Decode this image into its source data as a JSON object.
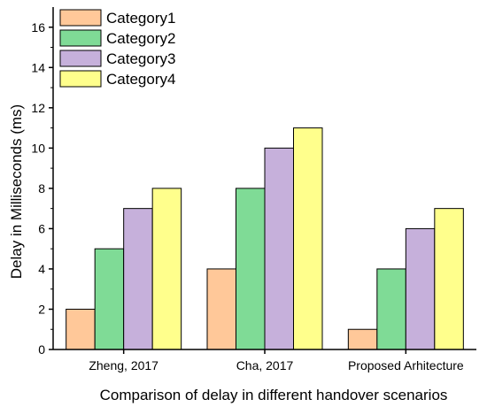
{
  "chart_data": {
    "type": "bar",
    "xlabel": "Comparison of delay in different handover scenarios",
    "ylabel": "Delay in Milliseconds (ms)",
    "ylim": [
      0,
      17
    ],
    "yticks": [
      0,
      2,
      4,
      6,
      8,
      10,
      12,
      14,
      16
    ],
    "grid": false,
    "legend_position": "top-left",
    "categories": [
      "Zheng, 2017",
      "Cha, 2017",
      "Proposed Arhitecture"
    ],
    "series": [
      {
        "name": "Category1",
        "color": "#ffc899",
        "values": [
          2,
          4,
          1
        ]
      },
      {
        "name": "Category2",
        "color": "#7fdb96",
        "values": [
          5,
          8,
          4
        ]
      },
      {
        "name": "Category3",
        "color": "#c6b0db",
        "values": [
          7,
          10,
          6
        ]
      },
      {
        "name": "Category4",
        "color": "#ffff8c",
        "values": [
          8,
          11,
          7
        ]
      }
    ]
  }
}
